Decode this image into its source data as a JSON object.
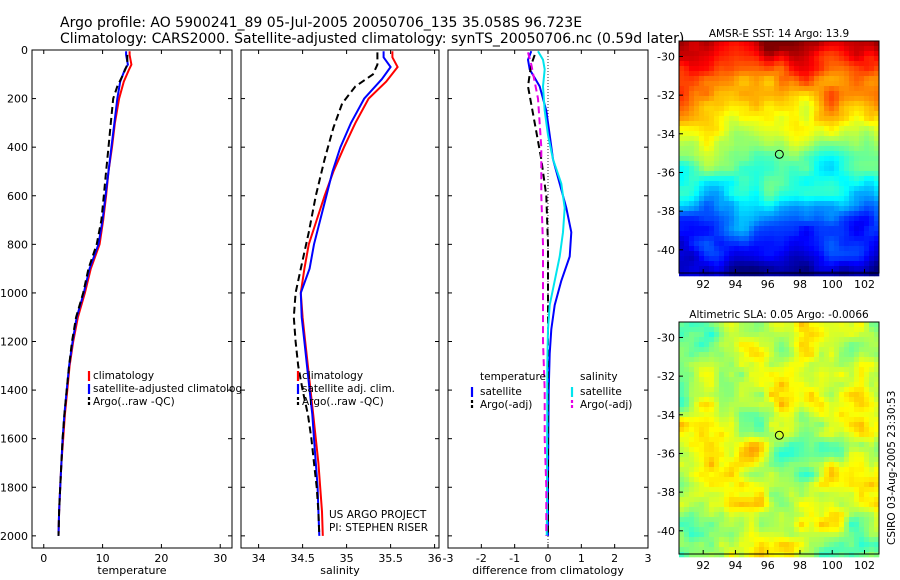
{
  "header": {
    "line1": "Argo profile: AO 5900241_89 05-Jul-2005 20050706_135 35.058S 96.723E",
    "line2": "Climatology: CARS2000. Satellite-adjusted climatology: synTS_20050706.nc (0.59d later)"
  },
  "credit": {
    "project": "US ARGO PROJECT",
    "pi": "PI: STEPHEN RISER",
    "stamp": "CSIRO 03-Aug-2005 23:30:53"
  },
  "colors": {
    "climatology": "#ff0000",
    "satellite": "#0000ff",
    "argo": "#000000",
    "sal_satellite": "#00e5ee",
    "sal_argo": "#e600e6",
    "marker": "#000000"
  },
  "chart_data": [
    {
      "type": "line",
      "xlabel": "temperature",
      "ylabel": "",
      "xlim": [
        -2,
        32
      ],
      "ylim": [
        2050,
        0
      ],
      "xticks": [
        "0",
        "10",
        "20",
        "30"
      ],
      "xtick_values": [
        0,
        10,
        20,
        30
      ],
      "yticks": [
        "0",
        "200",
        "400",
        "600",
        "800",
        "1000",
        "1200",
        "1400",
        "1600",
        "1800",
        "2000"
      ],
      "ytick_values": [
        0,
        200,
        400,
        600,
        800,
        1000,
        1200,
        1400,
        1600,
        1800,
        2000
      ],
      "legend": [
        "climatology",
        "satellite-adjusted climatology",
        "Argo(..raw -QC)"
      ],
      "legend_position": "lower-right",
      "series": [
        {
          "name": "climatology",
          "color": "climatology",
          "dash": "solid",
          "points": [
            [
              14.6,
              5
            ],
            [
              14.6,
              20
            ],
            [
              14.9,
              60
            ],
            [
              14.5,
              80
            ],
            [
              13.6,
              130
            ],
            [
              12.8,
              200
            ],
            [
              12.1,
              300
            ],
            [
              11.6,
              400
            ],
            [
              11.0,
              500
            ],
            [
              10.6,
              600
            ],
            [
              10.1,
              700
            ],
            [
              9.5,
              800
            ],
            [
              8.0,
              900
            ],
            [
              7.0,
              1000
            ],
            [
              5.8,
              1100
            ],
            [
              5.0,
              1200
            ],
            [
              4.4,
              1300
            ],
            [
              4.0,
              1400
            ],
            [
              3.6,
              1500
            ],
            [
              3.3,
              1600
            ],
            [
              3.0,
              1700
            ],
            [
              2.8,
              1800
            ],
            [
              2.6,
              1900
            ],
            [
              2.5,
              2000
            ]
          ]
        },
        {
          "name": "satellite-adjusted climatology",
          "color": "satellite",
          "dash": "solid",
          "points": [
            [
              14.0,
              5
            ],
            [
              14.0,
              20
            ],
            [
              14.3,
              60
            ],
            [
              13.8,
              80
            ],
            [
              13.0,
              130
            ],
            [
              12.5,
              200
            ],
            [
              12.0,
              300
            ],
            [
              11.5,
              400
            ],
            [
              11.0,
              500
            ],
            [
              10.5,
              600
            ],
            [
              10.0,
              700
            ],
            [
              9.3,
              800
            ],
            [
              7.8,
              900
            ],
            [
              6.8,
              1000
            ],
            [
              5.6,
              1100
            ],
            [
              4.9,
              1200
            ],
            [
              4.3,
              1300
            ],
            [
              3.9,
              1400
            ],
            [
              3.5,
              1500
            ],
            [
              3.2,
              1600
            ],
            [
              3.0,
              1700
            ],
            [
              2.8,
              1800
            ],
            [
              2.6,
              1900
            ],
            [
              2.5,
              2000
            ]
          ]
        },
        {
          "name": "Argo(..raw -QC)",
          "color": "argo",
          "dash": "dashed",
          "points": [
            [
              14.2,
              20
            ],
            [
              14.2,
              60
            ],
            [
              13.5,
              100
            ],
            [
              12.5,
              150
            ],
            [
              11.8,
              200
            ],
            [
              11.4,
              300
            ],
            [
              11.0,
              400
            ],
            [
              10.6,
              500
            ],
            [
              10.2,
              600
            ],
            [
              9.8,
              700
            ],
            [
              9.0,
              800
            ],
            [
              7.6,
              900
            ],
            [
              6.7,
              1000
            ],
            [
              5.5,
              1100
            ],
            [
              4.8,
              1200
            ],
            [
              4.3,
              1300
            ],
            [
              3.9,
              1400
            ],
            [
              3.5,
              1500
            ],
            [
              3.2,
              1600
            ],
            [
              3.0,
              1700
            ],
            [
              2.8,
              1800
            ],
            [
              2.6,
              1900
            ],
            [
              2.5,
              2000
            ]
          ]
        }
      ]
    },
    {
      "type": "line",
      "xlabel": "salinity",
      "ylabel": "",
      "xlim": [
        33.8,
        36.05
      ],
      "ylim": [
        2050,
        0
      ],
      "xticks": [
        "34",
        "34.5",
        "35",
        "35.5",
        "36"
      ],
      "xtick_values": [
        34,
        34.5,
        35,
        35.5,
        36
      ],
      "legend": [
        "climatology",
        "satellite adj. clim.",
        "Argo(..raw -QC)"
      ],
      "legend_position": "lower-right",
      "series": [
        {
          "name": "climatology",
          "color": "climatology",
          "dash": "solid",
          "points": [
            [
              35.52,
              5
            ],
            [
              35.52,
              30
            ],
            [
              35.58,
              70
            ],
            [
              35.45,
              130
            ],
            [
              35.25,
              200
            ],
            [
              35.1,
              300
            ],
            [
              34.97,
              400
            ],
            [
              34.85,
              500
            ],
            [
              34.75,
              600
            ],
            [
              34.66,
              700
            ],
            [
              34.57,
              800
            ],
            [
              34.52,
              900
            ],
            [
              34.48,
              1000
            ],
            [
              34.5,
              1100
            ],
            [
              34.53,
              1200
            ],
            [
              34.56,
              1300
            ],
            [
              34.59,
              1400
            ],
            [
              34.62,
              1500
            ],
            [
              34.65,
              1600
            ],
            [
              34.68,
              1700
            ],
            [
              34.7,
              1800
            ],
            [
              34.72,
              1900
            ],
            [
              34.73,
              2000
            ]
          ]
        },
        {
          "name": "satellite adj. clim.",
          "color": "satellite",
          "dash": "solid",
          "points": [
            [
              35.42,
              5
            ],
            [
              35.42,
              30
            ],
            [
              35.5,
              70
            ],
            [
              35.4,
              120
            ],
            [
              35.2,
              200
            ],
            [
              35.05,
              300
            ],
            [
              34.93,
              400
            ],
            [
              34.84,
              500
            ],
            [
              34.77,
              600
            ],
            [
              34.7,
              700
            ],
            [
              34.63,
              800
            ],
            [
              34.58,
              900
            ],
            [
              34.48,
              1000
            ],
            [
              34.49,
              1100
            ],
            [
              34.52,
              1200
            ],
            [
              34.55,
              1300
            ],
            [
              34.58,
              1400
            ],
            [
              34.61,
              1500
            ],
            [
              34.63,
              1600
            ],
            [
              34.65,
              1700
            ],
            [
              34.67,
              1800
            ],
            [
              34.68,
              1900
            ],
            [
              34.69,
              2000
            ]
          ]
        },
        {
          "name": "Argo(..raw -QC)",
          "color": "argo",
          "dash": "dashed",
          "points": [
            [
              35.35,
              10
            ],
            [
              35.35,
              60
            ],
            [
              35.3,
              100
            ],
            [
              35.1,
              150
            ],
            [
              34.95,
              220
            ],
            [
              34.85,
              320
            ],
            [
              34.75,
              450
            ],
            [
              34.65,
              600
            ],
            [
              34.57,
              750
            ],
            [
              34.48,
              900
            ],
            [
              34.42,
              1000
            ],
            [
              34.4,
              1100
            ],
            [
              34.42,
              1200
            ],
            [
              34.45,
              1300
            ],
            [
              34.5,
              1400
            ],
            [
              34.56,
              1500
            ],
            [
              34.6,
              1600
            ],
            [
              34.63,
              1700
            ],
            [
              34.66,
              1800
            ],
            [
              34.68,
              1900
            ],
            [
              34.69,
              2000
            ]
          ]
        }
      ]
    },
    {
      "type": "line",
      "xlabel": "difference from climatology",
      "ylabel": "",
      "xlim": [
        -3,
        3
      ],
      "ylim": [
        2050,
        0
      ],
      "xticks": [
        "-3",
        "-2",
        "-1",
        "0",
        "1",
        "2",
        "3"
      ],
      "xtick_values": [
        -3,
        -2,
        -1,
        0,
        1,
        2,
        3
      ],
      "zero_line": true,
      "legend_left": {
        "title": "temperature",
        "items": [
          "satellite",
          "Argo(-adj)"
        ]
      },
      "legend_right": {
        "title": "salinity",
        "items": [
          "satellite",
          "Argo(-adj)"
        ]
      },
      "series": [
        {
          "name": "satellite",
          "group": "temperature",
          "color": "satellite",
          "dash": "solid",
          "points": [
            [
              -0.5,
              5
            ],
            [
              -0.6,
              40
            ],
            [
              -0.55,
              80
            ],
            [
              -0.25,
              150
            ],
            [
              -0.05,
              250
            ],
            [
              0.05,
              350
            ],
            [
              0.15,
              450
            ],
            [
              0.35,
              550
            ],
            [
              0.55,
              650
            ],
            [
              0.7,
              750
            ],
            [
              0.65,
              850
            ],
            [
              0.4,
              950
            ],
            [
              0.2,
              1050
            ],
            [
              0.1,
              1150
            ],
            [
              0.05,
              1250
            ],
            [
              0.02,
              1400
            ],
            [
              0.01,
              1600
            ],
            [
              0.0,
              1800
            ],
            [
              0.0,
              2000
            ]
          ]
        },
        {
          "name": "Argo(-adj)",
          "group": "temperature",
          "color": "argo",
          "dash": "dashed",
          "points": [
            [
              -0.4,
              20
            ],
            [
              -0.5,
              60
            ],
            [
              -0.55,
              100
            ],
            [
              -0.6,
              150
            ],
            [
              -0.4,
              300
            ],
            [
              -0.2,
              450
            ],
            [
              -0.05,
              600
            ],
            [
              0.0,
              800
            ],
            [
              0.0,
              1000
            ],
            [
              0.0,
              1200
            ],
            [
              0.0,
              1400
            ],
            [
              0.0,
              1600
            ],
            [
              0.0,
              1800
            ],
            [
              0.0,
              2000
            ]
          ]
        },
        {
          "name": "satellite",
          "group": "salinity",
          "color": "sal_satellite",
          "dash": "solid",
          "points": [
            [
              -0.3,
              5
            ],
            [
              -0.15,
              40
            ],
            [
              -0.1,
              80
            ],
            [
              -0.15,
              150
            ],
            [
              -0.1,
              250
            ],
            [
              0.0,
              350
            ],
            [
              0.15,
              450
            ],
            [
              0.4,
              550
            ],
            [
              0.5,
              650
            ],
            [
              0.45,
              750
            ],
            [
              0.35,
              850
            ],
            [
              0.2,
              950
            ],
            [
              0.05,
              1050
            ],
            [
              0.0,
              1150
            ],
            [
              -0.02,
              1300
            ],
            [
              -0.02,
              1500
            ],
            [
              -0.03,
              1700
            ],
            [
              -0.03,
              1900
            ],
            [
              -0.04,
              2000
            ]
          ]
        },
        {
          "name": "Argo(-adj)",
          "group": "salinity",
          "color": "sal_argo",
          "dash": "dashed",
          "points": [
            [
              -0.6,
              10
            ],
            [
              -0.5,
              60
            ],
            [
              -0.3,
              200
            ],
            [
              -0.2,
              400
            ],
            [
              -0.2,
              600
            ],
            [
              -0.15,
              800
            ],
            [
              -0.15,
              1000
            ],
            [
              -0.15,
              1200
            ],
            [
              -0.1,
              1400
            ],
            [
              -0.1,
              1600
            ],
            [
              -0.05,
              1800
            ],
            [
              -0.05,
              2000
            ]
          ]
        }
      ]
    },
    {
      "type": "heatmap",
      "title": "AMSR-E SST: 14 Argo: 13.9",
      "xlim": [
        90.5,
        102.9
      ],
      "ylim": [
        -41.2,
        -29.2
      ],
      "xticks": [
        "92",
        "94",
        "96",
        "98",
        "100",
        "102"
      ],
      "xtick_values": [
        92,
        94,
        96,
        98,
        100,
        102
      ],
      "yticks": [
        "-30",
        "-32",
        "-34",
        "-36",
        "-38",
        "-40"
      ],
      "ytick_values": [
        -30,
        -32,
        -34,
        -36,
        -38,
        -40
      ],
      "marker": [
        96.72,
        -35.06
      ]
    },
    {
      "type": "heatmap",
      "title": "Altimetric SLA: 0.05 Argo: -0.0066",
      "xlim": [
        90.5,
        102.9
      ],
      "ylim": [
        -41.2,
        -29.2
      ],
      "xticks": [
        "92",
        "94",
        "96",
        "98",
        "100",
        "102"
      ],
      "xtick_values": [
        92,
        94,
        96,
        98,
        100,
        102
      ],
      "yticks": [
        "-30",
        "-32",
        "-34",
        "-36",
        "-38",
        "-40"
      ],
      "ytick_values": [
        -30,
        -32,
        -34,
        -36,
        -38,
        -40
      ],
      "marker": [
        96.72,
        -35.06
      ]
    }
  ]
}
